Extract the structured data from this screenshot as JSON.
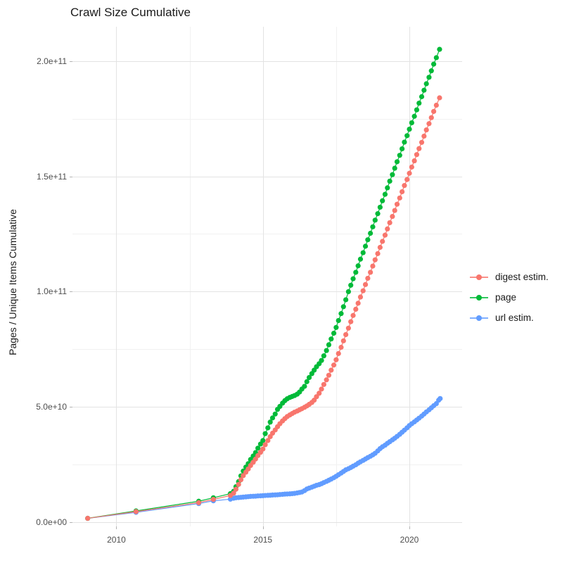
{
  "title": "Crawl Size Cumulative",
  "axes": {
    "x": {
      "ticks": [
        {
          "label": "2010",
          "value": 2010
        },
        {
          "label": "2015",
          "value": 2015
        },
        {
          "label": "2020",
          "value": 2020
        }
      ],
      "minor_ticks": [
        2012.5,
        2017.5
      ],
      "range": [
        2008.5,
        2021.8
      ]
    },
    "y": {
      "label": "Pages / Unique Items Cumulative",
      "ticks": [
        {
          "label": "0.0e+00",
          "value": 0
        },
        {
          "label": "5.0e+10",
          "value": 50
        },
        {
          "label": "1.0e+11",
          "value": 100
        },
        {
          "label": "1.5e+11",
          "value": 150
        },
        {
          "label": "2.0e+11",
          "value": 200
        }
      ],
      "minor_ticks": [
        25,
        75,
        125,
        175
      ],
      "range": [
        -1.7,
        214.8
      ],
      "value_unit": "1e9"
    }
  },
  "legend": {
    "items": [
      {
        "label": "digest estim.",
        "color": "#F8766D"
      },
      {
        "label": "page",
        "color": "#00BA38"
      },
      {
        "label": "url estim.",
        "color": "#619CFF"
      }
    ]
  },
  "colors": {
    "grid_major": "#e3e3e3",
    "grid_minor": "#f1f1f1",
    "tick_text": "#4d4d4d",
    "title_text": "#1a1a1a"
  },
  "chart_data": {
    "type": "line",
    "markers": true,
    "title": "Crawl Size Cumulative",
    "xlabel": "",
    "ylabel": "Pages / Unique Items Cumulative",
    "xlim": [
      2008.5,
      2021.8
    ],
    "ylim_e9": [
      -1.7,
      214.8
    ],
    "x_ticks": [
      2010,
      2015,
      2020
    ],
    "y_ticks_e9": [
      0,
      50,
      100,
      150,
      200
    ],
    "grid": true,
    "legend_position": "right",
    "value_unit_note": "values stored in units of 1e9 pages",
    "draw_order": [
      "url estim.",
      "page",
      "digest estim."
    ],
    "series": [
      {
        "name": "digest estim.",
        "color": "#F8766D",
        "points": [
          [
            2009.02,
            1.8
          ],
          [
            2010.67,
            4.7
          ],
          [
            2012.81,
            8.6
          ],
          [
            2013.31,
            10.0
          ],
          [
            2013.89,
            11.7
          ],
          [
            2014.0,
            12.7
          ],
          [
            2014.08,
            14.4
          ],
          [
            2014.17,
            16.5
          ],
          [
            2014.25,
            18.5
          ],
          [
            2014.33,
            20.3
          ],
          [
            2014.42,
            21.8
          ],
          [
            2014.5,
            23.2
          ],
          [
            2014.58,
            24.7
          ],
          [
            2014.67,
            26.1
          ],
          [
            2014.75,
            27.5
          ],
          [
            2014.83,
            29.0
          ],
          [
            2014.92,
            30.4
          ],
          [
            2015.0,
            31.8
          ],
          [
            2015.08,
            33.7
          ],
          [
            2015.17,
            35.5
          ],
          [
            2015.25,
            37.2
          ],
          [
            2015.33,
            38.7
          ],
          [
            2015.42,
            40.1
          ],
          [
            2015.5,
            41.5
          ],
          [
            2015.58,
            42.8
          ],
          [
            2015.67,
            44.0
          ],
          [
            2015.75,
            45.0
          ],
          [
            2015.83,
            45.9
          ],
          [
            2015.92,
            46.6
          ],
          [
            2016.0,
            47.2
          ],
          [
            2016.08,
            47.8
          ],
          [
            2016.17,
            48.3
          ],
          [
            2016.25,
            48.8
          ],
          [
            2016.33,
            49.3
          ],
          [
            2016.42,
            49.9
          ],
          [
            2016.5,
            50.5
          ],
          [
            2016.58,
            51.2
          ],
          [
            2016.67,
            52.0
          ],
          [
            2016.75,
            53.0
          ],
          [
            2016.83,
            54.5
          ],
          [
            2016.92,
            56.0
          ],
          [
            2017.0,
            57.8
          ],
          [
            2017.08,
            59.8
          ],
          [
            2017.17,
            61.8
          ],
          [
            2017.25,
            63.8
          ],
          [
            2017.33,
            66.0
          ],
          [
            2017.42,
            68.2
          ],
          [
            2017.5,
            70.5
          ],
          [
            2017.58,
            73.2
          ],
          [
            2017.67,
            75.9
          ],
          [
            2017.75,
            78.7
          ],
          [
            2017.83,
            81.4
          ],
          [
            2017.92,
            84.2
          ],
          [
            2018.0,
            87.0
          ],
          [
            2018.08,
            89.7
          ],
          [
            2018.17,
            92.4
          ],
          [
            2018.25,
            95.0
          ],
          [
            2018.33,
            97.7
          ],
          [
            2018.42,
            100.4
          ],
          [
            2018.5,
            103.1
          ],
          [
            2018.58,
            105.8
          ],
          [
            2018.67,
            108.4
          ],
          [
            2018.75,
            111.1
          ],
          [
            2018.83,
            113.8
          ],
          [
            2018.92,
            116.5
          ],
          [
            2019.0,
            119.2
          ],
          [
            2019.08,
            121.8
          ],
          [
            2019.17,
            124.5
          ],
          [
            2019.25,
            127.2
          ],
          [
            2019.33,
            129.9
          ],
          [
            2019.42,
            132.6
          ],
          [
            2019.5,
            135.2
          ],
          [
            2019.58,
            137.9
          ],
          [
            2019.67,
            140.6
          ],
          [
            2019.75,
            143.3
          ],
          [
            2019.83,
            146.0
          ],
          [
            2019.92,
            148.6
          ],
          [
            2020.0,
            151.3
          ],
          [
            2020.08,
            154.0
          ],
          [
            2020.17,
            156.7
          ],
          [
            2020.25,
            159.4
          ],
          [
            2020.33,
            162.0
          ],
          [
            2020.42,
            164.7
          ],
          [
            2020.5,
            167.4
          ],
          [
            2020.58,
            170.1
          ],
          [
            2020.67,
            172.8
          ],
          [
            2020.75,
            175.4
          ],
          [
            2020.83,
            178.1
          ],
          [
            2020.92,
            180.8
          ],
          [
            2021.03,
            184.0
          ]
        ]
      },
      {
        "name": "page",
        "color": "#00BA38",
        "points": [
          [
            2009.02,
            1.8
          ],
          [
            2010.67,
            5.0
          ],
          [
            2012.81,
            9.2
          ],
          [
            2013.31,
            10.7
          ],
          [
            2013.89,
            12.5
          ],
          [
            2014.0,
            13.5
          ],
          [
            2014.08,
            15.5
          ],
          [
            2014.17,
            17.7
          ],
          [
            2014.25,
            20.2
          ],
          [
            2014.33,
            22.3
          ],
          [
            2014.42,
            24.0
          ],
          [
            2014.5,
            25.5
          ],
          [
            2014.58,
            27.3
          ],
          [
            2014.67,
            28.8
          ],
          [
            2014.75,
            30.3
          ],
          [
            2014.83,
            32.2
          ],
          [
            2014.92,
            34.0
          ],
          [
            2015.0,
            35.5
          ],
          [
            2015.08,
            38.5
          ],
          [
            2015.17,
            41.0
          ],
          [
            2015.25,
            43.5
          ],
          [
            2015.33,
            45.3
          ],
          [
            2015.42,
            47.0
          ],
          [
            2015.5,
            49.0
          ],
          [
            2015.58,
            50.3
          ],
          [
            2015.67,
            51.7
          ],
          [
            2015.75,
            52.8
          ],
          [
            2015.83,
            53.6
          ],
          [
            2015.92,
            54.2
          ],
          [
            2016.0,
            54.6
          ],
          [
            2016.08,
            55.0
          ],
          [
            2016.17,
            55.6
          ],
          [
            2016.25,
            56.5
          ],
          [
            2016.33,
            57.8
          ],
          [
            2016.42,
            59.0
          ],
          [
            2016.5,
            61.0
          ],
          [
            2016.58,
            62.8
          ],
          [
            2016.67,
            64.5
          ],
          [
            2016.75,
            66.0
          ],
          [
            2016.83,
            67.5
          ],
          [
            2016.92,
            68.8
          ],
          [
            2017.0,
            70.2
          ],
          [
            2017.08,
            72.2
          ],
          [
            2017.17,
            74.5
          ],
          [
            2017.25,
            77.0
          ],
          [
            2017.33,
            79.5
          ],
          [
            2017.42,
            82.0
          ],
          [
            2017.5,
            84.5
          ],
          [
            2017.58,
            87.5
          ],
          [
            2017.67,
            90.5
          ],
          [
            2017.75,
            93.5
          ],
          [
            2017.83,
            96.5
          ],
          [
            2017.92,
            100.0
          ],
          [
            2018.0,
            102.8
          ],
          [
            2018.08,
            105.6
          ],
          [
            2018.17,
            108.4
          ],
          [
            2018.25,
            111.2
          ],
          [
            2018.33,
            114.1
          ],
          [
            2018.42,
            116.9
          ],
          [
            2018.5,
            119.7
          ],
          [
            2018.58,
            122.5
          ],
          [
            2018.67,
            125.3
          ],
          [
            2018.75,
            128.1
          ],
          [
            2018.83,
            131.0
          ],
          [
            2018.92,
            133.8
          ],
          [
            2019.0,
            136.6
          ],
          [
            2019.08,
            139.4
          ],
          [
            2019.17,
            142.2
          ],
          [
            2019.25,
            145.0
          ],
          [
            2019.33,
            147.9
          ],
          [
            2019.42,
            150.7
          ],
          [
            2019.5,
            153.5
          ],
          [
            2019.58,
            156.3
          ],
          [
            2019.67,
            159.1
          ],
          [
            2019.75,
            161.9
          ],
          [
            2019.83,
            164.8
          ],
          [
            2019.92,
            167.6
          ],
          [
            2020.0,
            170.4
          ],
          [
            2020.08,
            173.2
          ],
          [
            2020.17,
            176.0
          ],
          [
            2020.25,
            178.8
          ],
          [
            2020.33,
            181.7
          ],
          [
            2020.42,
            184.5
          ],
          [
            2020.5,
            187.3
          ],
          [
            2020.58,
            190.1
          ],
          [
            2020.67,
            192.9
          ],
          [
            2020.75,
            195.7
          ],
          [
            2020.83,
            198.6
          ],
          [
            2020.92,
            201.4
          ],
          [
            2021.03,
            205.0
          ]
        ]
      },
      {
        "name": "url estim.",
        "color": "#619CFF",
        "points": [
          [
            2009.02,
            1.8
          ],
          [
            2010.67,
            4.4
          ],
          [
            2012.81,
            8.2
          ],
          [
            2013.31,
            9.4
          ],
          [
            2013.89,
            10.1
          ],
          [
            2014.0,
            10.5
          ],
          [
            2014.08,
            10.7
          ],
          [
            2014.17,
            10.8
          ],
          [
            2014.25,
            10.9
          ],
          [
            2014.33,
            11.0
          ],
          [
            2014.42,
            11.1
          ],
          [
            2014.5,
            11.2
          ],
          [
            2014.58,
            11.3
          ],
          [
            2014.67,
            11.35
          ],
          [
            2014.75,
            11.4
          ],
          [
            2014.83,
            11.5
          ],
          [
            2014.92,
            11.55
          ],
          [
            2015.0,
            11.6
          ],
          [
            2015.08,
            11.7
          ],
          [
            2015.17,
            11.75
          ],
          [
            2015.25,
            11.8
          ],
          [
            2015.33,
            11.9
          ],
          [
            2015.42,
            11.95
          ],
          [
            2015.5,
            12.0
          ],
          [
            2015.58,
            12.1
          ],
          [
            2015.67,
            12.2
          ],
          [
            2015.75,
            12.3
          ],
          [
            2015.83,
            12.35
          ],
          [
            2015.92,
            12.4
          ],
          [
            2016.0,
            12.5
          ],
          [
            2016.08,
            12.6
          ],
          [
            2016.17,
            12.8
          ],
          [
            2016.25,
            13.0
          ],
          [
            2016.33,
            13.2
          ],
          [
            2016.42,
            13.8
          ],
          [
            2016.5,
            14.5
          ],
          [
            2016.58,
            14.9
          ],
          [
            2016.67,
            15.3
          ],
          [
            2016.75,
            15.7
          ],
          [
            2016.83,
            16.1
          ],
          [
            2016.92,
            16.4
          ],
          [
            2017.0,
            16.8
          ],
          [
            2017.08,
            17.3
          ],
          [
            2017.17,
            17.8
          ],
          [
            2017.25,
            18.3
          ],
          [
            2017.33,
            18.8
          ],
          [
            2017.42,
            19.4
          ],
          [
            2017.5,
            20.0
          ],
          [
            2017.58,
            20.7
          ],
          [
            2017.67,
            21.4
          ],
          [
            2017.75,
            22.1
          ],
          [
            2017.83,
            22.8
          ],
          [
            2017.92,
            23.3
          ],
          [
            2018.0,
            23.8
          ],
          [
            2018.08,
            24.4
          ],
          [
            2018.17,
            25.0
          ],
          [
            2018.25,
            25.7
          ],
          [
            2018.33,
            26.3
          ],
          [
            2018.42,
            26.9
          ],
          [
            2018.5,
            27.5
          ],
          [
            2018.58,
            28.1
          ],
          [
            2018.67,
            28.7
          ],
          [
            2018.75,
            29.3
          ],
          [
            2018.83,
            30.0
          ],
          [
            2018.92,
            31.0
          ],
          [
            2019.0,
            32.0
          ],
          [
            2019.08,
            32.8
          ],
          [
            2019.17,
            33.5
          ],
          [
            2019.25,
            34.3
          ],
          [
            2019.33,
            35.0
          ],
          [
            2019.42,
            35.8
          ],
          [
            2019.5,
            36.5
          ],
          [
            2019.58,
            37.3
          ],
          [
            2019.67,
            38.2
          ],
          [
            2019.75,
            39.1
          ],
          [
            2019.83,
            40.0
          ],
          [
            2019.92,
            41.0
          ],
          [
            2020.0,
            42.0
          ],
          [
            2020.08,
            42.8
          ],
          [
            2020.17,
            43.6
          ],
          [
            2020.25,
            44.4
          ],
          [
            2020.33,
            45.2
          ],
          [
            2020.42,
            46.1
          ],
          [
            2020.5,
            47.0
          ],
          [
            2020.58,
            47.9
          ],
          [
            2020.67,
            48.8
          ],
          [
            2020.75,
            49.7
          ],
          [
            2020.83,
            50.6
          ],
          [
            2020.92,
            51.5
          ],
          [
            2021.0,
            53.0
          ],
          [
            2021.05,
            53.7
          ]
        ]
      }
    ]
  }
}
